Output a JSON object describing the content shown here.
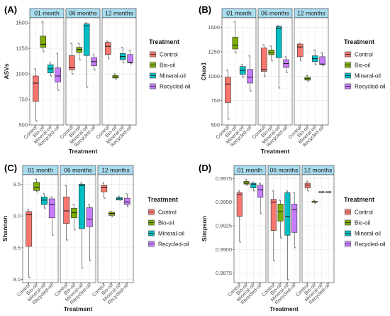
{
  "legend": {
    "title": "Treatment",
    "entries": [
      {
        "label": "Control",
        "color": "#F8766D"
      },
      {
        "label": "Bio-oil",
        "color": "#7CAE00"
      },
      {
        "label": "Mineral-oil",
        "color": "#00BFC4"
      },
      {
        "label": "Recycled-oil",
        "color": "#C77CFF"
      }
    ]
  },
  "chart_data": [
    {
      "panel_label": "(A)",
      "type": "box",
      "ylabel": "ASVs",
      "xlabel": "Treatment",
      "ylim": [
        500,
        1550
      ],
      "yticks": [
        500,
        750,
        1000,
        1250,
        1500
      ],
      "ytick_labels": [
        "500",
        "750",
        "1000",
        "1250",
        "1500"
      ],
      "facets": [
        "01 month",
        "06 months",
        "12 months"
      ],
      "categories": [
        "Control",
        "Bio-oil",
        "Mineral-oil",
        "Recycled-oil"
      ],
      "series": [
        {
          "facet": "01 month",
          "boxes": [
            {
              "min": 540,
              "q1": 730,
              "median": 910,
              "q3": 980,
              "max": 1050
            },
            {
              "min": 1220,
              "q1": 1260,
              "median": 1290,
              "q3": 1370,
              "max": 1510
            },
            {
              "min": 980,
              "q1": 1010,
              "median": 1050,
              "q3": 1090,
              "max": 1110
            },
            {
              "min": 840,
              "q1": 920,
              "median": 980,
              "q3": 1060,
              "max": 1200
            }
          ]
        },
        {
          "facet": "06 months",
          "boxes": [
            {
              "min": 1000,
              "q1": 1040,
              "median": 1060,
              "q3": 1180,
              "max": 1300
            },
            {
              "min": 1140,
              "q1": 1210,
              "median": 1240,
              "q3": 1260,
              "max": 1300
            },
            {
              "min": 870,
              "q1": 1180,
              "median": 1470,
              "q3": 1490,
              "max": 1500
            },
            {
              "min": 1040,
              "q1": 1080,
              "median": 1120,
              "q3": 1160,
              "max": 1190
            }
          ]
        },
        {
          "facet": "12 months",
          "boxes": [
            {
              "min": 1150,
              "q1": 1190,
              "median": 1270,
              "q3": 1310,
              "max": 1320
            },
            {
              "min": 950,
              "q1": 960,
              "median": 970,
              "q3": 985,
              "max": 1000
            },
            {
              "min": 1110,
              "q1": 1140,
              "median": 1170,
              "q3": 1200,
              "max": 1260
            },
            {
              "min": 1100,
              "q1": 1110,
              "median": 1115,
              "q3": 1190,
              "max": 1230
            }
          ]
        }
      ]
    },
    {
      "panel_label": "(B)",
      "type": "box",
      "ylabel": "Chao1",
      "xlabel": "Treatment",
      "ylim": [
        500,
        1600
      ],
      "yticks": [
        500,
        750,
        1000,
        1250,
        1500
      ],
      "ytick_labels": [
        "500",
        "750",
        "1000",
        "1250",
        "1500"
      ],
      "facets": [
        "01 month",
        "06 months",
        "12 months"
      ],
      "categories": [
        "Control",
        "Bio-oil",
        "Mineral-oil",
        "Recycled-oil"
      ],
      "series": [
        {
          "facet": "01 month",
          "boxes": [
            {
              "min": 560,
              "q1": 730,
              "median": 920,
              "q3": 990,
              "max": 1060
            },
            {
              "min": 1240,
              "q1": 1280,
              "median": 1320,
              "q3": 1400,
              "max": 1560
            },
            {
              "min": 990,
              "q1": 1020,
              "median": 1060,
              "q3": 1100,
              "max": 1120
            },
            {
              "min": 850,
              "q1": 930,
              "median": 990,
              "q3": 1070,
              "max": 1210
            }
          ]
        },
        {
          "facet": "06 months",
          "boxes": [
            {
              "min": 1000,
              "q1": 1050,
              "median": 1070,
              "q3": 1290,
              "max": 1320
            },
            {
              "min": 1160,
              "q1": 1220,
              "median": 1240,
              "q3": 1270,
              "max": 1310
            },
            {
              "min": 880,
              "q1": 1190,
              "median": 1490,
              "q3": 1510,
              "max": 1520
            },
            {
              "min": 1040,
              "q1": 1090,
              "median": 1130,
              "q3": 1170,
              "max": 1200
            }
          ]
        },
        {
          "facet": "12 months",
          "boxes": [
            {
              "min": 1160,
              "q1": 1200,
              "median": 1300,
              "q3": 1330,
              "max": 1340
            },
            {
              "min": 950,
              "q1": 960,
              "median": 975,
              "q3": 990,
              "max": 1010
            },
            {
              "min": 1120,
              "q1": 1150,
              "median": 1180,
              "q3": 1210,
              "max": 1270
            },
            {
              "min": 1110,
              "q1": 1120,
              "median": 1125,
              "q3": 1200,
              "max": 1240
            }
          ]
        }
      ]
    },
    {
      "panel_label": "(C)",
      "type": "box",
      "ylabel": "Shannon",
      "xlabel": "Treatment",
      "ylim": [
        7.95,
        9.65
      ],
      "yticks": [
        8.0,
        8.5,
        9.0,
        9.5
      ],
      "ytick_labels": [
        "8.0",
        "8.5",
        "9.0",
        "9.5"
      ],
      "facets": [
        "01 month",
        "06 months",
        "12 months"
      ],
      "categories": [
        "Control",
        "Bio-oil",
        "Mineral-oil",
        "Recycled-oil"
      ],
      "series": [
        {
          "facet": "01 month",
          "boxes": [
            {
              "min": 8.03,
              "q1": 8.52,
              "median": 9.02,
              "q3": 9.07,
              "max": 9.1
            },
            {
              "min": 9.38,
              "q1": 9.4,
              "median": 9.45,
              "q3": 9.53,
              "max": 9.58
            },
            {
              "min": 9.12,
              "q1": 9.18,
              "median": 9.25,
              "q3": 9.3,
              "max": 9.35
            },
            {
              "min": 8.7,
              "q1": 8.97,
              "median": 9.18,
              "q3": 9.27,
              "max": 9.3
            }
          ]
        },
        {
          "facet": "06 months",
          "boxes": [
            {
              "min": 8.62,
              "q1": 8.88,
              "median": 9.08,
              "q3": 9.3,
              "max": 9.48
            },
            {
              "min": 8.78,
              "q1": 8.97,
              "median": 9.05,
              "q3": 9.12,
              "max": 9.18
            },
            {
              "min": 8.18,
              "q1": 8.8,
              "median": 9.48,
              "q3": 9.5,
              "max": 9.52
            },
            {
              "min": 8.3,
              "q1": 8.83,
              "median": 8.95,
              "q3": 9.13,
              "max": 9.18
            }
          ]
        },
        {
          "facet": "12 months",
          "boxes": [
            {
              "min": 9.28,
              "q1": 9.38,
              "median": 9.45,
              "q3": 9.48,
              "max": 9.52
            },
            {
              "min": 8.99,
              "q1": 9.01,
              "median": 9.04,
              "q3": 9.06,
              "max": 9.07
            },
            {
              "min": 9.25,
              "q1": 9.25,
              "median": 9.27,
              "q3": 9.29,
              "max": 9.31
            },
            {
              "min": 9.15,
              "q1": 9.18,
              "median": 9.22,
              "q3": 9.28,
              "max": 9.35
            }
          ]
        }
      ]
    },
    {
      "panel_label": "(D)",
      "type": "box",
      "ylabel": "Simpson",
      "xlabel": "Treatment",
      "ylim": [
        0.9865,
        0.9979
      ],
      "yticks": [
        0.9875,
        0.99,
        0.9925,
        0.995,
        0.9975
      ],
      "ytick_labels": [
        "0.9875",
        "0.9900",
        "0.9925",
        "0.9950",
        "0.9975"
      ],
      "facets": [
        "01 month",
        "06 months",
        "12 months"
      ],
      "categories": [
        "Control",
        "Bio-oil",
        "Mineral-oil",
        "Recycled-oil"
      ],
      "series": [
        {
          "facet": "01 month",
          "boxes": [
            {
              "min": 0.9908,
              "q1": 0.9935,
              "median": 0.9958,
              "q3": 0.996,
              "max": 0.9962
            },
            {
              "min": 0.9968,
              "q1": 0.9969,
              "median": 0.997,
              "q3": 0.9972,
              "max": 0.9974
            },
            {
              "min": 0.9962,
              "q1": 0.9965,
              "median": 0.9969,
              "q3": 0.997,
              "max": 0.9971
            },
            {
              "min": 0.9938,
              "q1": 0.9955,
              "median": 0.9963,
              "q3": 0.9968,
              "max": 0.997
            }
          ]
        },
        {
          "facet": "06 months",
          "boxes": [
            {
              "min": 0.9888,
              "q1": 0.992,
              "median": 0.995,
              "q3": 0.9953,
              "max": 0.9962
            },
            {
              "min": 0.9912,
              "q1": 0.993,
              "median": 0.994,
              "q3": 0.9948,
              "max": 0.9952
            },
            {
              "min": 0.9868,
              "q1": 0.9915,
              "median": 0.9935,
              "q3": 0.996,
              "max": 0.9962
            },
            {
              "min": 0.9902,
              "q1": 0.9918,
              "median": 0.9942,
              "q3": 0.9948,
              "max": 0.996
            }
          ]
        },
        {
          "facet": "12 months",
          "boxes": [
            {
              "min": 0.9962,
              "q1": 0.9965,
              "median": 0.9968,
              "q3": 0.997,
              "max": 0.9972
            },
            {
              "min": 0.9949,
              "q1": 0.995,
              "median": 0.995,
              "q3": 0.9951,
              "max": 0.9952
            },
            {
              "min": 0.996,
              "q1": 0.996,
              "median": 0.9961,
              "q3": 0.9961,
              "max": 0.9961
            },
            {
              "min": 0.996,
              "q1": 0.996,
              "median": 0.9961,
              "q3": 0.9961,
              "max": 0.9961
            }
          ]
        }
      ]
    }
  ]
}
